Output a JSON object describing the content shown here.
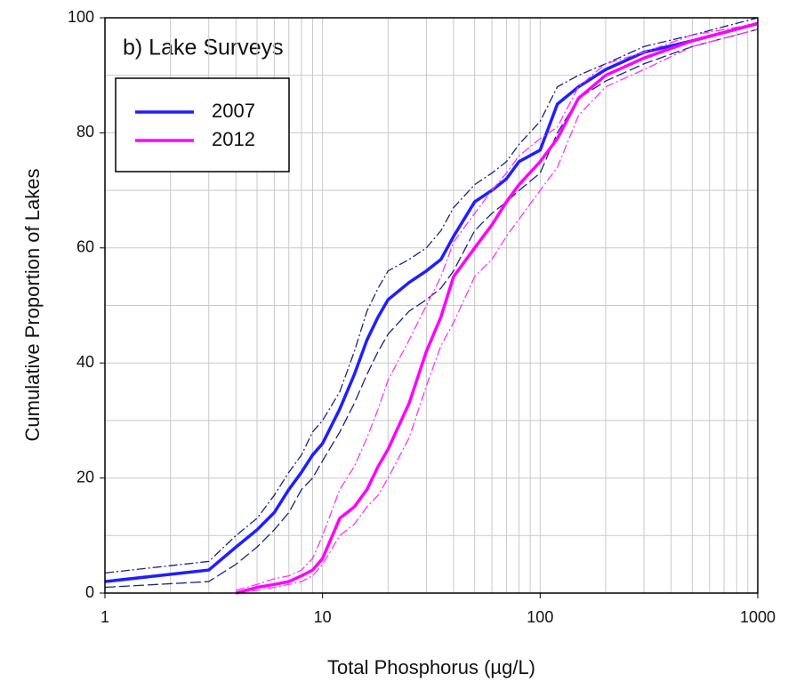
{
  "chart_data": {
    "type": "line",
    "title": "b) Lake Surveys",
    "xlabel": "Total Phosphorus (µg/L)",
    "ylabel": "Cumulative Proportion of Lakes",
    "xscale": "log",
    "x": [
      1,
      3,
      4,
      5,
      6,
      7,
      8,
      9,
      10,
      12,
      14,
      16,
      18,
      20,
      25,
      30,
      35,
      40,
      50,
      60,
      70,
      80,
      100,
      120,
      150,
      200,
      300,
      500,
      1000
    ],
    "series": [
      {
        "name": "2007",
        "color": "#1f1fff",
        "bound_color": "#1a237e",
        "values": [
          2,
          4,
          8,
          11,
          14,
          18,
          21,
          24,
          26,
          32,
          38,
          44,
          48,
          51,
          54,
          56,
          58,
          62,
          68,
          70,
          72,
          75,
          77,
          85,
          88,
          91,
          94,
          96,
          99
        ],
        "lower": [
          1,
          2,
          5,
          8,
          11,
          14,
          18,
          20,
          23,
          28,
          33,
          38,
          42,
          45,
          49,
          51,
          53,
          56,
          63,
          66,
          68,
          70,
          73,
          80,
          86,
          89,
          92,
          95,
          98
        ],
        "upper": [
          3.5,
          5.5,
          10,
          13,
          17,
          21,
          24,
          28,
          30,
          35,
          42,
          49,
          53,
          56,
          58,
          60,
          63,
          67,
          71,
          73,
          75,
          78,
          82,
          88,
          90,
          92,
          95,
          97,
          100
        ]
      },
      {
        "name": "2012",
        "color": "#ff00ff",
        "bound_color": "#ff33ff",
        "values": [
          null,
          null,
          0,
          1,
          1.5,
          2,
          3,
          4,
          6,
          13,
          15,
          18,
          22,
          25,
          33,
          42,
          48,
          55,
          60,
          64,
          68,
          71,
          75,
          79,
          86,
          90,
          93,
          96,
          99
        ],
        "lower": [
          null,
          null,
          0,
          0.5,
          1,
          1.5,
          2,
          3,
          5,
          10,
          12,
          15,
          17,
          20,
          27,
          36,
          43,
          47,
          55,
          58,
          62,
          65,
          70,
          74,
          83,
          88,
          91,
          95,
          98
        ],
        "upper": [
          null,
          null,
          0.5,
          1.5,
          2.5,
          3,
          4,
          6,
          10,
          18,
          22,
          27,
          32,
          37,
          44,
          50,
          55,
          61,
          66,
          70,
          73,
          76,
          79,
          81,
          88,
          92,
          94,
          97,
          99
        ]
      }
    ],
    "xlim": [
      1,
      1000
    ],
    "xticks": [
      1,
      10,
      100,
      1000
    ],
    "xminor_ticks": [
      2,
      3,
      4,
      5,
      6,
      7,
      8,
      9,
      20,
      30,
      40,
      50,
      60,
      70,
      80,
      90,
      200,
      300,
      400,
      500,
      600,
      700,
      800,
      900
    ],
    "ylim": [
      0,
      100
    ],
    "yticks": [
      0,
      20,
      40,
      60,
      80,
      100
    ],
    "yminor_ticks": [
      10,
      30,
      50,
      70,
      90
    ],
    "grid": true,
    "legend": "upper left"
  }
}
